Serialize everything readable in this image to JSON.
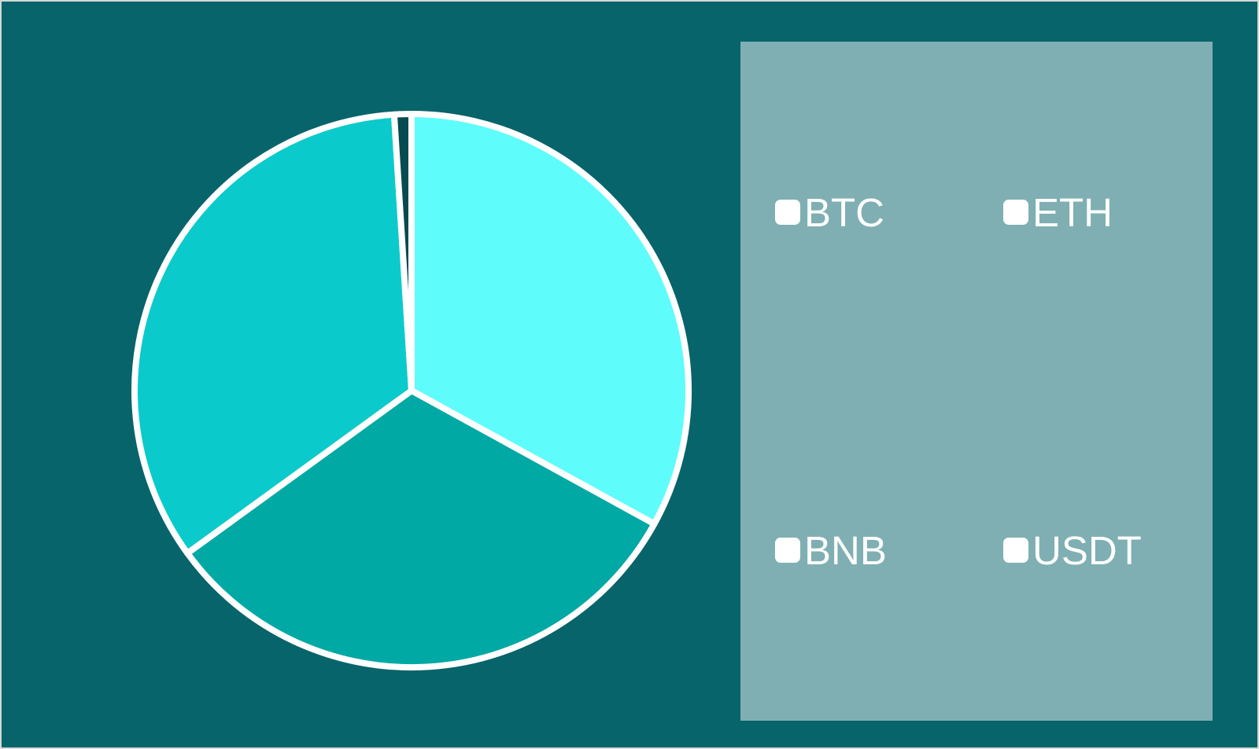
{
  "page": {
    "background": "#07646A",
    "frame_border_color": "#D5D9D6"
  },
  "chart_data": {
    "type": "pie",
    "categories": [
      "BTC",
      "ETH",
      "BNB",
      "USDT"
    ],
    "values": [
      33,
      32,
      34,
      1
    ],
    "colors": [
      "#5FFCFC",
      "#00A9A4",
      "#0BCACB",
      "#064B4F"
    ],
    "title": "",
    "start_angle_deg": 0,
    "direction": "clockwise",
    "slice_border_color": "#FFFFFF",
    "slice_border_width": 8,
    "legend_position": "right",
    "labels_shown_on_slices": false
  },
  "legend": {
    "background": "#7FAFB2",
    "text_color": "#FFFFFF",
    "items": [
      {
        "label": "BTC",
        "color": "#5FFCFC"
      },
      {
        "label": "ETH",
        "color": "#00A9A4"
      },
      {
        "label": "BNB",
        "color": "#0BCACB"
      },
      {
        "label": "USDT",
        "color": "#064B4F"
      }
    ]
  }
}
